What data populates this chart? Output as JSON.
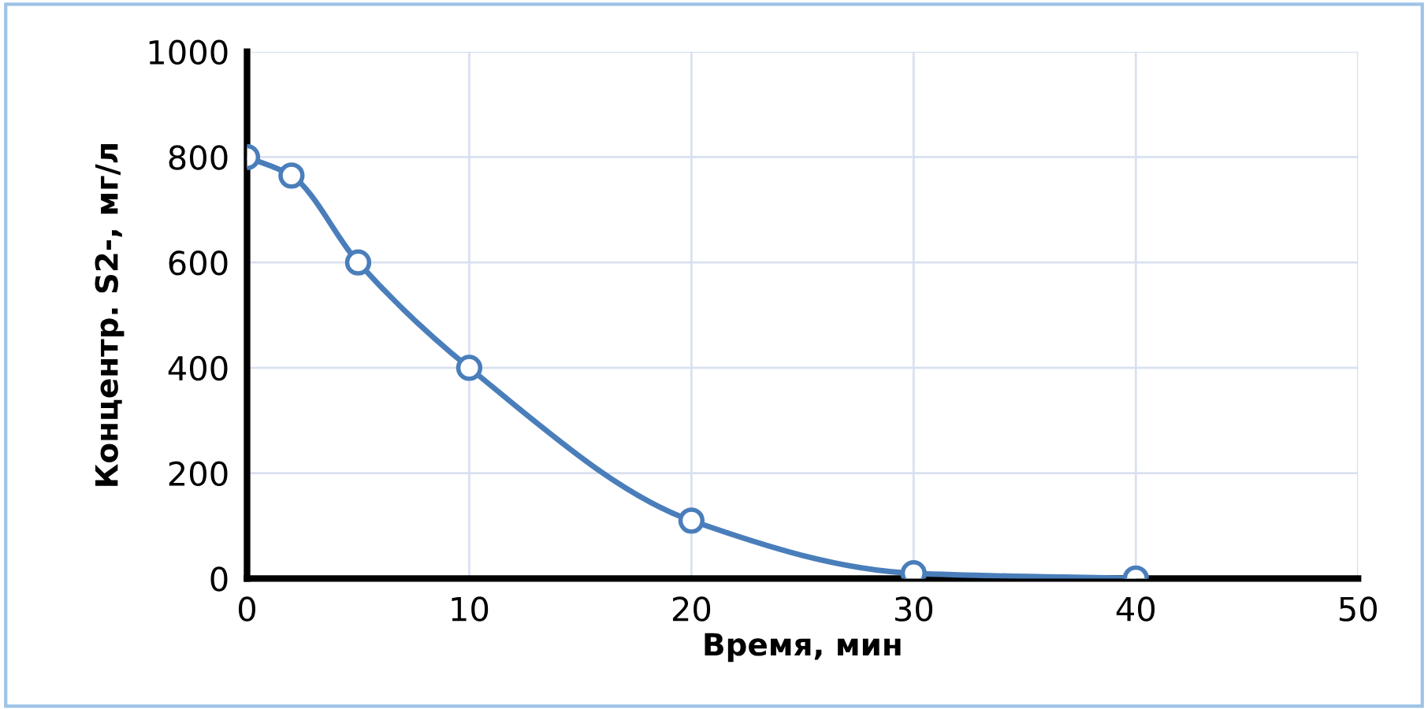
{
  "chart_data": {
    "type": "line",
    "xlabel": "Время, мин",
    "ylabel": "Концентр. S2-, мг/л",
    "x": [
      0,
      2,
      5,
      10,
      20,
      30,
      40
    ],
    "series": [
      {
        "color": "#4a7ebb",
        "values": [
          800,
          765,
          600,
          400,
          110,
          10,
          0
        ]
      }
    ],
    "xlim": [
      0,
      50
    ],
    "xticks": [
      0,
      10,
      20,
      30,
      40,
      50
    ],
    "ylim": [
      0,
      1000
    ],
    "yticks": [
      0,
      200,
      400,
      600,
      800,
      1000
    ],
    "grid": true,
    "marker": "circle",
    "line_style": "solid",
    "legend": false
  }
}
